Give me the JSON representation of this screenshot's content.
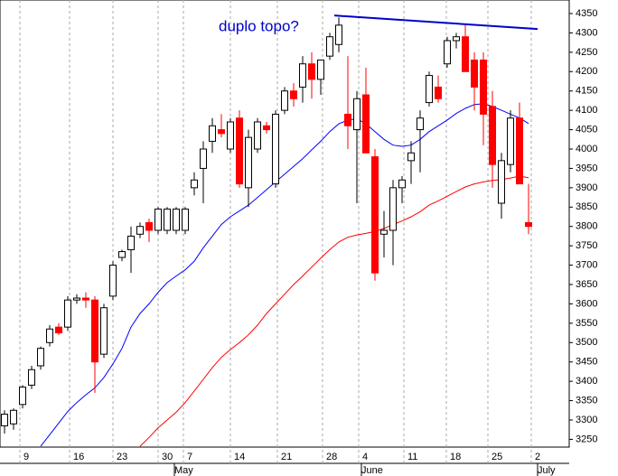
{
  "chart_data": {
    "type": "candlestick",
    "annotation": "duplo topo?",
    "annotation_color": "#0000cc",
    "open": [
      3285,
      3290,
      3340,
      3390,
      3440,
      3500,
      3540,
      3540,
      3610,
      3615,
      3610,
      3470,
      3620,
      3720,
      3740,
      3780,
      3810,
      3790,
      3790,
      3790,
      3790,
      3900,
      3950,
      4020,
      4050,
      4000,
      4080,
      3900,
      4000,
      4060,
      3910,
      4100,
      4150,
      4160,
      4220,
      4180,
      4240,
      4270,
      4090,
      4050,
      4140,
      3980,
      3780,
      3790,
      3900,
      3970,
      4050,
      4120,
      4160,
      4220,
      4280,
      4290,
      4230,
      4230,
      4110,
      3860,
      3960,
      4080,
      3810
    ],
    "high": [
      3325,
      3330,
      3390,
      3440,
      3490,
      3545,
      3550,
      3620,
      3625,
      3630,
      3620,
      3600,
      3710,
      3740,
      3800,
      3810,
      3820,
      3850,
      3850,
      3850,
      3850,
      3940,
      4020,
      4080,
      4090,
      4080,
      4100,
      4050,
      4080,
      4070,
      4100,
      4160,
      4170,
      4240,
      4250,
      4230,
      4300,
      4340,
      4240,
      4150,
      4210,
      4000,
      3840,
      3920,
      3930,
      4020,
      4100,
      4200,
      4190,
      4290,
      4300,
      4320,
      4250,
      4250,
      4150,
      3990,
      4100,
      4120,
      3910
    ],
    "low": [
      3265,
      3275,
      3330,
      3380,
      3430,
      3490,
      3520,
      3530,
      3600,
      3590,
      3370,
      3460,
      3610,
      3710,
      3680,
      3770,
      3760,
      3780,
      3780,
      3780,
      3780,
      3880,
      3860,
      3990,
      4030,
      3990,
      3900,
      3850,
      3990,
      4040,
      3900,
      4090,
      4110,
      4120,
      4130,
      4140,
      4230,
      4250,
      4000,
      3860,
      3990,
      3660,
      3720,
      3700,
      3860,
      3910,
      3940,
      4110,
      4120,
      4210,
      4260,
      4200,
      4100,
      4010,
      3900,
      3820,
      3940,
      3910,
      3780
    ],
    "close": [
      3315,
      3325,
      3385,
      3430,
      3485,
      3535,
      3525,
      3610,
      3615,
      3610,
      3450,
      3590,
      3700,
      3735,
      3775,
      3800,
      3790,
      3845,
      3845,
      3845,
      3845,
      3920,
      4000,
      4060,
      4040,
      4070,
      3910,
      4030,
      4070,
      4050,
      4090,
      4150,
      4130,
      4220,
      4180,
      4230,
      4290,
      4320,
      4060,
      4130,
      3990,
      3680,
      3790,
      3900,
      3920,
      3990,
      4080,
      4190,
      4130,
      4280,
      4290,
      4200,
      4160,
      4090,
      3960,
      3970,
      4080,
      3910,
      3800
    ],
    "up_color": "#ffffff",
    "down_color": "#ff0000",
    "series": [
      {
        "color": "#0000ff",
        "values": [
          null,
          null,
          null,
          null,
          3232,
          3262,
          3292,
          3322,
          3345,
          3365,
          3383,
          3410,
          3445,
          3485,
          3540,
          3575,
          3600,
          3630,
          3655,
          3672,
          3688,
          3710,
          3745,
          3775,
          3805,
          3825,
          3840,
          3855,
          3875,
          3895,
          3915,
          3935,
          3955,
          3975,
          3998,
          4020,
          4045,
          4065,
          4075,
          4078,
          4065,
          4045,
          4025,
          4010,
          4007,
          4010,
          4025,
          4045,
          4060,
          4075,
          4092,
          4105,
          4115,
          4117,
          4110,
          4100,
          4090,
          4080,
          4066
        ]
      },
      {
        "color": "#ff0000",
        "values": [
          null,
          null,
          null,
          null,
          null,
          null,
          null,
          null,
          null,
          null,
          null,
          null,
          null,
          null,
          null,
          3232,
          3255,
          3280,
          3300,
          3320,
          3345,
          3375,
          3405,
          3435,
          3462,
          3482,
          3500,
          3520,
          3545,
          3575,
          3600,
          3625,
          3650,
          3672,
          3695,
          3718,
          3740,
          3760,
          3772,
          3778,
          3782,
          3787,
          3795,
          3805,
          3814,
          3825,
          3838,
          3855,
          3866,
          3878,
          3890,
          3902,
          3910,
          3915,
          3919,
          3921,
          3925,
          3930,
          3926
        ]
      }
    ],
    "trendline": {
      "x": [
        36.5,
        59
      ],
      "y": [
        4345,
        4310
      ],
      "color": "#0000cc"
    },
    "xlim": [
      -0.5,
      62.5
    ],
    "ylim": [
      3230,
      4385
    ],
    "yticks": [
      3250,
      3300,
      3350,
      3400,
      3450,
      3500,
      3550,
      3600,
      3650,
      3700,
      3750,
      3800,
      3850,
      3900,
      3950,
      4000,
      4050,
      4100,
      4150,
      4200,
      4250,
      4300,
      4350
    ],
    "xticks": [
      {
        "value": 1.7,
        "label": "9"
      },
      {
        "value": 7.2,
        "label": "16"
      },
      {
        "value": 12,
        "label": "23"
      },
      {
        "value": 17,
        "label": "30"
      },
      {
        "value": 19.8,
        "label": "7"
      },
      {
        "value": 25,
        "label": "14"
      },
      {
        "value": 30.2,
        "label": "21"
      },
      {
        "value": 35.2,
        "label": "28"
      },
      {
        "value": 39.2,
        "label": "4"
      },
      {
        "value": 44.2,
        "label": "11"
      },
      {
        "value": 48.9,
        "label": "18"
      },
      {
        "value": 53.5,
        "label": "25"
      },
      {
        "value": 58.3,
        "label": "2"
      }
    ],
    "month_ticks": [
      {
        "value": 18.8,
        "label": "May"
      },
      {
        "value": 39.5,
        "label": "June"
      },
      {
        "value": 59,
        "label": "July"
      }
    ]
  }
}
